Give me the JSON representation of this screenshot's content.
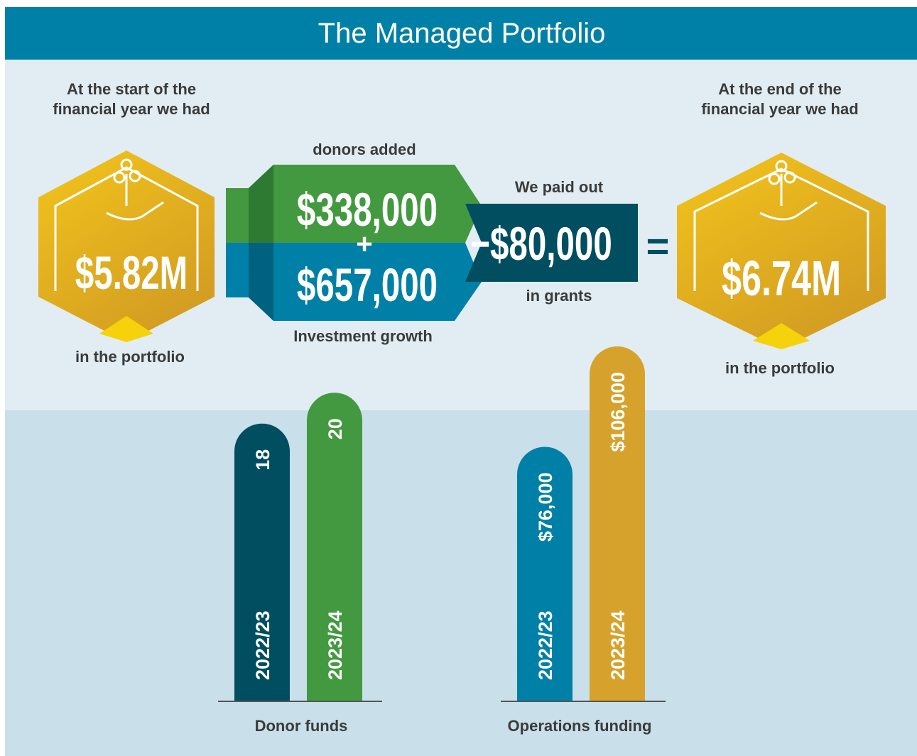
{
  "header": {
    "title": "The Managed Portfolio"
  },
  "start": {
    "caption": [
      "At the start of the",
      "financial year we had"
    ],
    "amount": "$5.82M",
    "footer": "in the portfolio"
  },
  "added": {
    "donors_label": "donors added",
    "donors_amount": "$338,000",
    "plus": "+",
    "growth_amount": "$657,000",
    "growth_label": "Investment growth"
  },
  "paid": {
    "label": "We paid out",
    "amount": "−$80,000",
    "footer": "in grants"
  },
  "equals": "=",
  "end": {
    "caption": [
      "At the end of the",
      "financial year we had"
    ],
    "amount": "$6.74M",
    "footer": "in the portfolio"
  },
  "chart_data": [
    {
      "type": "bar",
      "title": "Donor funds",
      "categories": [
        "2022/23",
        "2023/24"
      ],
      "values": [
        18,
        20
      ],
      "colors": [
        "#014e60",
        "#43993f"
      ],
      "ylim": [
        0,
        23
      ]
    },
    {
      "type": "bar",
      "title": "Operations funding",
      "categories": [
        "2022/23",
        "2023/24"
      ],
      "values": [
        76000,
        106000
      ],
      "value_labels": [
        "$76,000",
        "$106,000"
      ],
      "colors": [
        "#0080a6",
        "#d6a22b"
      ],
      "ylim": [
        0,
        106000
      ]
    }
  ]
}
